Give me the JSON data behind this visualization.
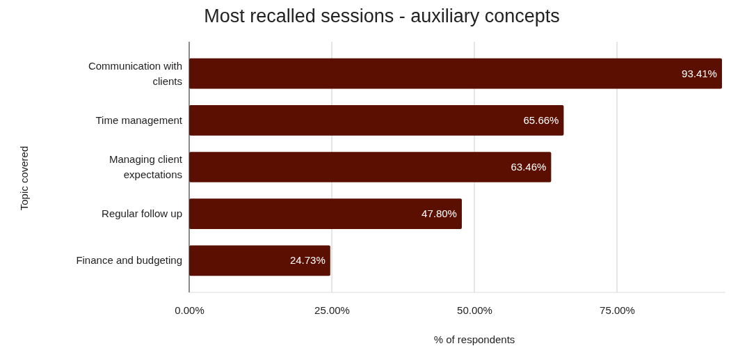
{
  "chart_data": {
    "type": "bar",
    "orientation": "horizontal",
    "title": "Most recalled sessions - auxiliary concepts",
    "xlabel": "% of respondents",
    "ylabel": "Topic covered",
    "categories": [
      "Communication with clients",
      "Time management",
      "Managing client expectations",
      "Regular follow up",
      "Finance and budgeting"
    ],
    "values": [
      93.41,
      65.66,
      63.46,
      47.8,
      24.73
    ],
    "value_labels": [
      "93.41%",
      "65.66%",
      "63.46%",
      "47.80%",
      "24.73%"
    ],
    "color": "#5b0f00",
    "xticks": [
      {
        "value": 0,
        "label": "0.00%"
      },
      {
        "value": 25,
        "label": "25.00%"
      },
      {
        "value": 50,
        "label": "50.00%"
      },
      {
        "value": 75,
        "label": "75.00%"
      }
    ],
    "xlim": [
      0,
      94
    ],
    "grid": "x"
  }
}
